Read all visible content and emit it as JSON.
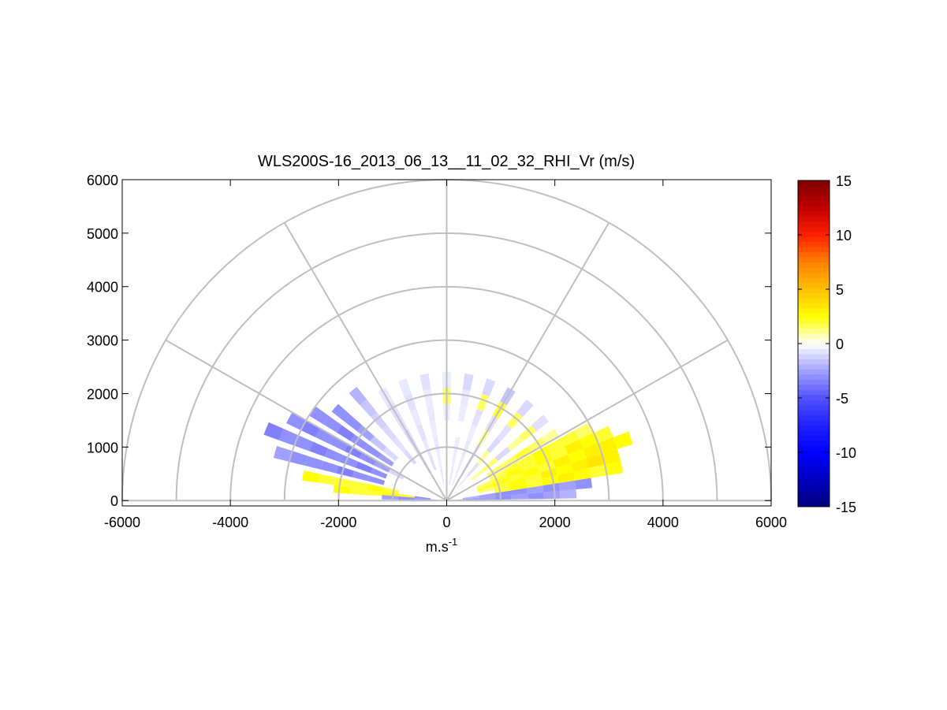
{
  "chart_data": {
    "type": "rhi",
    "title": "WLS200S-16_2013_06_13__11_02_32_RHI_Vr (m/s)",
    "xlabel": {
      "base": "m.s",
      "sup": "-1"
    },
    "xlim": [
      -6000,
      6000
    ],
    "xticks": [
      -6000,
      -4000,
      -2000,
      0,
      2000,
      4000,
      6000
    ],
    "ylim": [
      -100,
      6000
    ],
    "yticks": [
      0,
      1000,
      2000,
      3000,
      4000,
      5000,
      6000
    ],
    "rings": [
      1000,
      2000,
      3000,
      4000,
      5000,
      6000
    ],
    "spokes": [
      0,
      30,
      60,
      90,
      120,
      150,
      180
    ],
    "clim": [
      -15,
      15
    ],
    "cticks": [
      -15,
      -10,
      -5,
      0,
      5,
      10,
      15
    ],
    "colormap": [
      "#00007f",
      "#0000c0",
      "#0000ff",
      "#2020ff",
      "#5050ff",
      "#a0a0ff",
      "#ffffff",
      "#ffff00",
      "#ffc000",
      "#ff8000",
      "#ff2000",
      "#c00000",
      "#800000"
    ],
    "beam_width": 4,
    "gate_length": 300,
    "beams": [
      {
        "elevation": 3,
        "values": [
          -2,
          -2.5,
          -2.5,
          -3,
          -2.5,
          -3,
          -2.5,
          -2,
          null,
          null,
          null,
          null
        ]
      },
      {
        "elevation": 7,
        "values": [
          null,
          -2,
          -2.5,
          -3,
          -3,
          -2.5,
          -3,
          -2.5,
          -3,
          null,
          null,
          null
        ]
      },
      {
        "elevation": 11,
        "values": [
          null,
          null,
          null,
          2,
          2.5,
          2,
          2.5,
          3,
          2.5,
          2,
          2.5,
          null
        ]
      },
      {
        "elevation": 15,
        "values": [
          null,
          null,
          1.5,
          2,
          2.5,
          2,
          3,
          2.5,
          3,
          3.5,
          3,
          null
        ]
      },
      {
        "elevation": 19,
        "values": [
          null,
          null,
          2,
          2.5,
          2,
          2.5,
          2,
          3,
          2.5,
          3,
          3,
          2.5
        ]
      },
      {
        "elevation": 23,
        "values": [
          null,
          null,
          1.5,
          2,
          2.5,
          2,
          2.5,
          2,
          3,
          2.5,
          2,
          null
        ]
      },
      {
        "elevation": 27,
        "values": [
          null,
          null,
          null,
          1.5,
          2,
          2,
          2.5,
          2,
          2,
          1.5,
          null,
          null
        ]
      },
      {
        "elevation": 32,
        "values": [
          null,
          null,
          null,
          1.5,
          1.5,
          2,
          1.5,
          1,
          null,
          null,
          null,
          null
        ]
      },
      {
        "elevation": 40,
        "values": [
          null,
          null,
          1,
          1.5,
          -1,
          1,
          1.5,
          -0.8,
          null,
          null,
          null,
          null
        ]
      },
      {
        "elevation": 50,
        "values": [
          null,
          -0.5,
          -0.8,
          1,
          -1,
          -0.8,
          1.5,
          -1,
          null,
          null,
          null,
          null
        ]
      },
      {
        "elevation": 60,
        "values": [
          null,
          null,
          -0.6,
          -0.5,
          1,
          -0.8,
          2,
          -1.5,
          null,
          null,
          null,
          null
        ]
      },
      {
        "elevation": 70,
        "values": [
          null,
          -0.5,
          -0.5,
          -0.6,
          -0.5,
          -0.8,
          1.5,
          -1,
          null,
          null,
          null,
          null
        ]
      },
      {
        "elevation": 80,
        "values": [
          null,
          -0.6,
          -0.5,
          -0.5,
          null,
          -0.5,
          -0.6,
          -1,
          null,
          null,
          null,
          null
        ]
      },
      {
        "elevation": 90,
        "values": [
          null,
          null,
          null,
          null,
          null,
          -0.5,
          1.5,
          -0.5,
          null,
          null,
          null,
          null
        ]
      },
      {
        "elevation": 100,
        "values": [
          null,
          -0.6,
          -0.5,
          -0.6,
          -0.5,
          -0.6,
          -0.5,
          -0.8,
          null,
          null,
          null,
          null
        ]
      },
      {
        "elevation": 110,
        "values": [
          null,
          null,
          -0.8,
          -0.6,
          -0.8,
          -0.6,
          -0.8,
          -0.6,
          null,
          null,
          null,
          null
        ]
      },
      {
        "elevation": 120,
        "values": [
          null,
          null,
          -0.8,
          -0.8,
          -1,
          -0.8,
          -0.8,
          -0.6,
          null,
          null,
          null,
          null
        ]
      },
      {
        "elevation": 130,
        "values": [
          null,
          null,
          null,
          -1,
          -0.8,
          -1,
          -1.2,
          -1.5,
          -2,
          null,
          null,
          null
        ]
      },
      {
        "elevation": 140,
        "values": [
          null,
          null,
          null,
          null,
          -1,
          -1.5,
          -2.5,
          -3,
          -3,
          null,
          null,
          null
        ]
      },
      {
        "elevation": 146,
        "values": [
          null,
          null,
          null,
          null,
          -2.5,
          -3,
          -3,
          -3.5,
          -3,
          -3,
          null,
          null
        ]
      },
      {
        "elevation": 152,
        "values": [
          null,
          null,
          null,
          -1,
          -2.5,
          -3,
          -3.5,
          -3,
          -3,
          -3.5,
          -3,
          null
        ]
      },
      {
        "elevation": 158,
        "values": [
          null,
          null,
          null,
          null,
          -3,
          -3.5,
          -3,
          -3,
          -3.5,
          -3,
          -3,
          -3.5
        ]
      },
      {
        "elevation": 164,
        "values": [
          null,
          null,
          null,
          null,
          -3,
          -3,
          -3.5,
          -3,
          -3,
          -3,
          -2.5,
          null
        ]
      },
      {
        "elevation": 170,
        "values": [
          null,
          null,
          null,
          2,
          2.5,
          2,
          2,
          2,
          2.5,
          null,
          null,
          null
        ]
      },
      {
        "elevation": 174,
        "values": [
          null,
          -3,
          2,
          2.5,
          2,
          2,
          2.5,
          null,
          null,
          null,
          null,
          null
        ]
      },
      {
        "elevation": 177,
        "values": [
          -2,
          -2.5,
          -3,
          -2.5,
          null,
          null,
          null,
          null,
          null,
          null,
          null,
          null
        ]
      }
    ]
  }
}
